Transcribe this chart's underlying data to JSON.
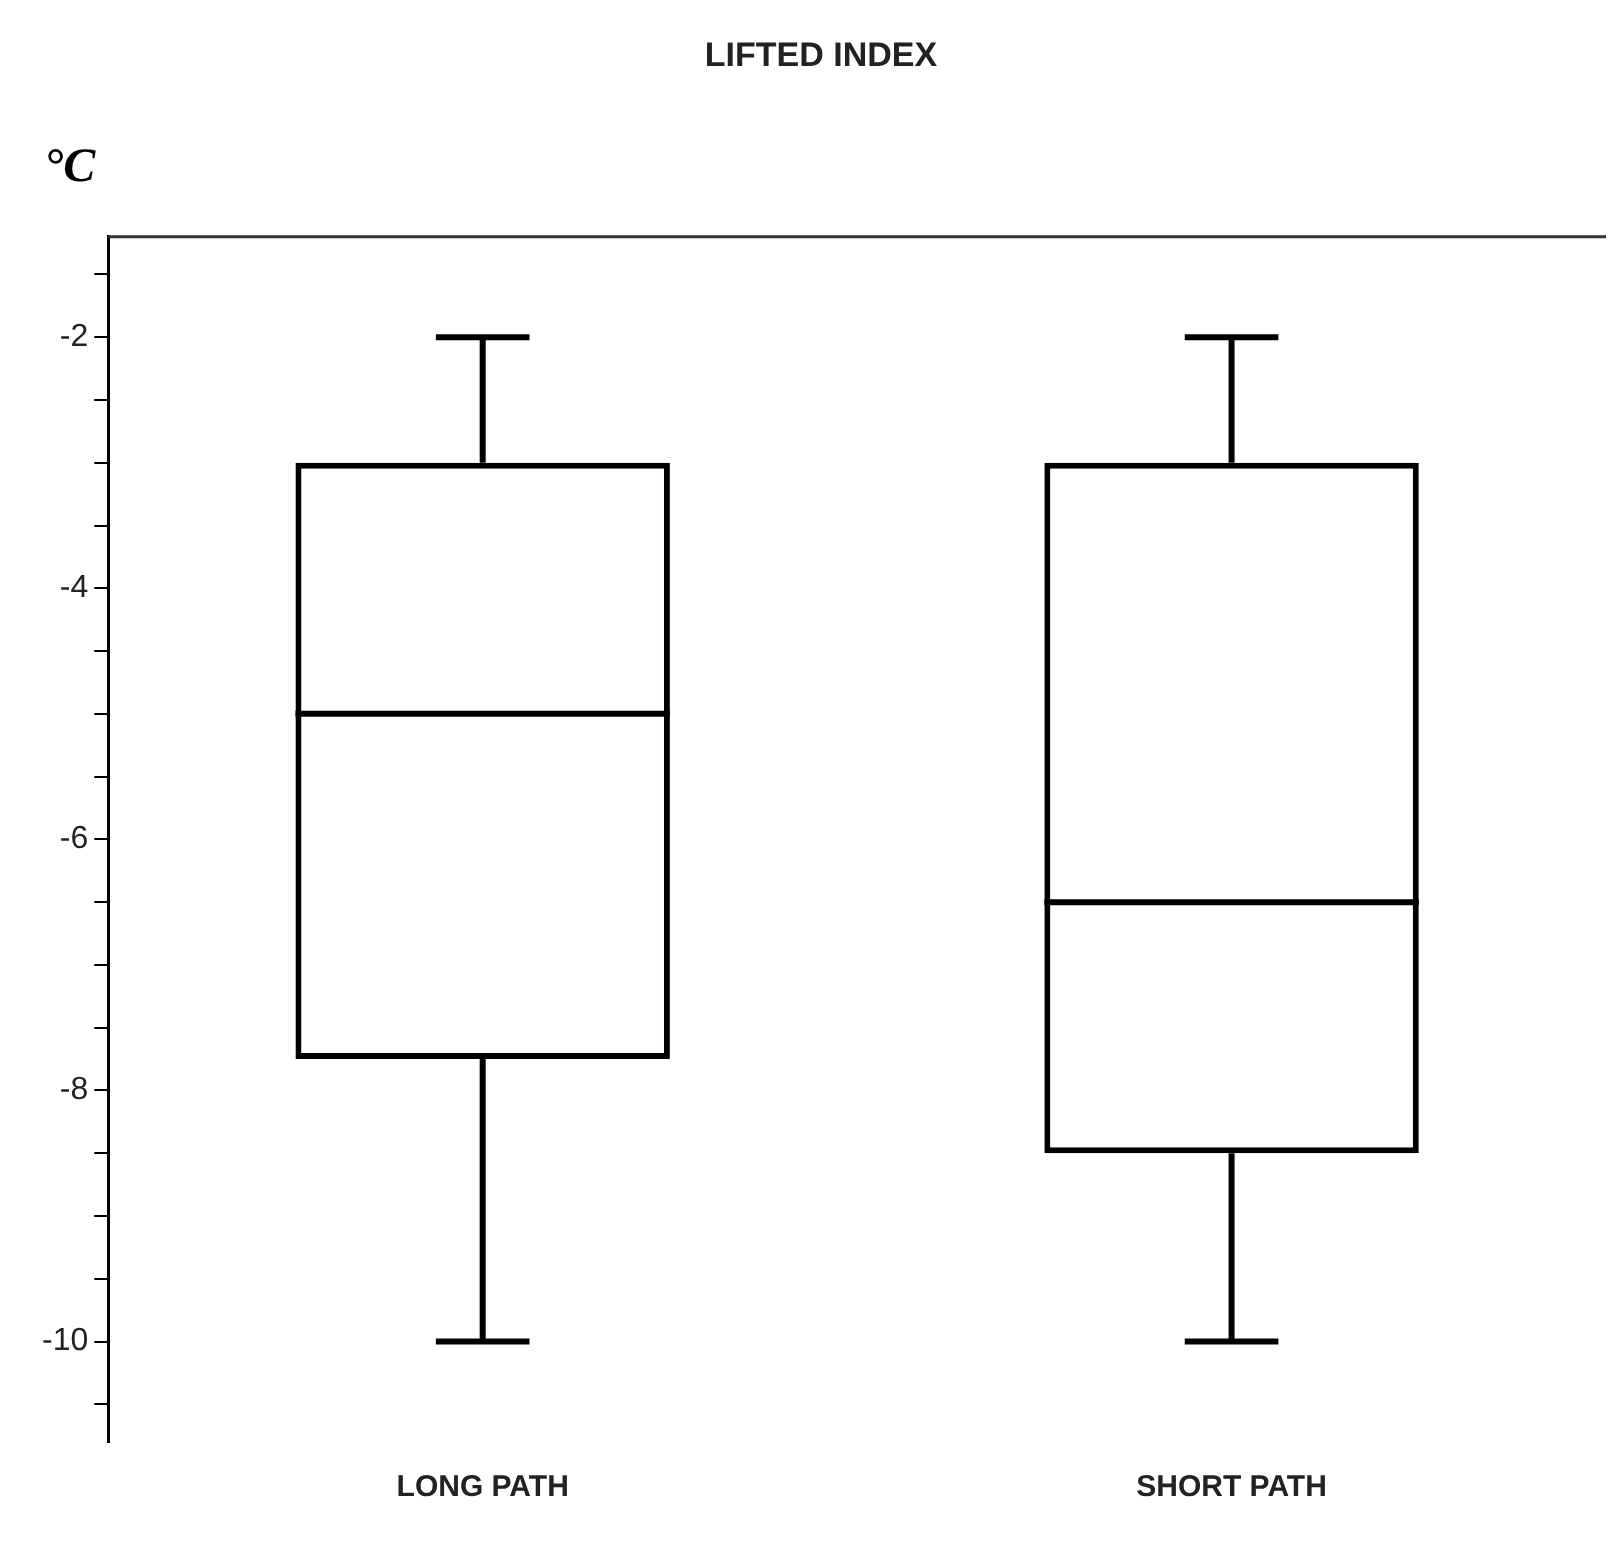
{
  "chart_data": {
    "type": "box",
    "title": "LIFTED INDEX",
    "ylabel": "°C",
    "categories": [
      "LONG PATH",
      "SHORT PATH"
    ],
    "boxes": [
      {
        "low": -10,
        "q1": -7.75,
        "median": -5,
        "q3": -3,
        "high": -2
      },
      {
        "low": -10,
        "q1": -8.5,
        "median": -6.5,
        "q3": -3,
        "high": -2
      }
    ],
    "color": "#000000",
    "ylim": [
      -10.8,
      -1.2
    ],
    "yticks": [
      {
        "value": -10.5,
        "label": null
      },
      -10,
      {
        "value": -9.5,
        "label": null
      },
      {
        "value": -9,
        "label": null
      },
      {
        "value": -8.5,
        "label": null
      },
      -8,
      {
        "value": -7.5,
        "label": null
      },
      {
        "value": -7,
        "label": null
      },
      {
        "value": -6.5,
        "label": null
      },
      -6,
      {
        "value": -5.5,
        "label": null
      },
      {
        "value": -5,
        "label": null
      },
      {
        "value": -4.5,
        "label": null
      },
      -4,
      {
        "value": -3.5,
        "label": null
      },
      {
        "value": -3,
        "label": null
      },
      {
        "value": -2.5,
        "label": null
      },
      -2,
      {
        "value": -1.5,
        "label": null
      }
    ],
    "grid": false,
    "legend": false
  }
}
